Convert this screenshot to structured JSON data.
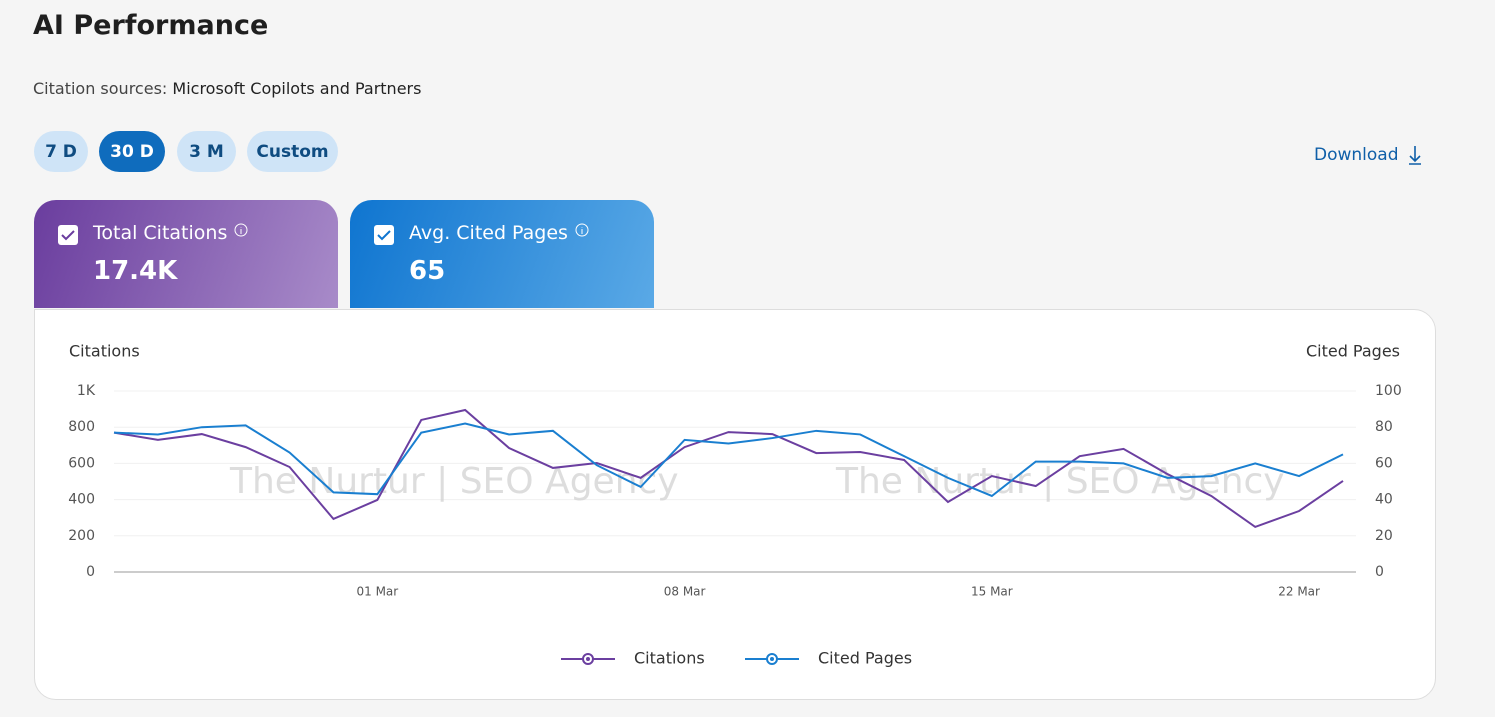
{
  "header": {
    "title": "AI Performance",
    "source_label": "Citation sources:",
    "source": "Microsoft Copilots and Partners"
  },
  "ranges": [
    "7 D",
    "30 D",
    "3 M",
    "Custom"
  ],
  "active_range": 1,
  "download": "Download",
  "cards": [
    {
      "label": "Total Citations",
      "value": "17.4K"
    },
    {
      "label": "Avg. Cited Pages",
      "value": "65"
    }
  ],
  "watermark": "The Nurtur | SEO Agency",
  "chart_data": {
    "type": "line",
    "y_label": "Citations",
    "y2_label": "Cited Pages",
    "categories": [
      null,
      null,
      null,
      null,
      null,
      null,
      "01 Mar",
      null,
      null,
      null,
      null,
      null,
      null,
      "08 Mar",
      null,
      null,
      null,
      null,
      null,
      null,
      "15 Mar",
      null,
      null,
      null,
      null,
      null,
      null,
      "22 Mar",
      null
    ],
    "series": [
      {
        "name": "Citations",
        "color": "#6b3fa0",
        "values": [
          770,
          730,
          762,
          690,
          580,
          293,
          398,
          840,
          895,
          685,
          575,
          602,
          520,
          690,
          773,
          762,
          657,
          663,
          619,
          387,
          530,
          475,
          640,
          680,
          541,
          420,
          249,
          337,
          503
        ]
      },
      {
        "name": "Cited Pages",
        "color": "#1a7fd0",
        "axis": "y2",
        "values": [
          77,
          76,
          80,
          81,
          66,
          44,
          43,
          77,
          82,
          76,
          78,
          59,
          47,
          73,
          71,
          74,
          78,
          76,
          64,
          52,
          42,
          61,
          61,
          60,
          52,
          53,
          60,
          53,
          65
        ]
      }
    ],
    "ylim": [
      0,
      1000
    ],
    "yticks": [
      0,
      200,
      400,
      600,
      800,
      {
        "value": 1000,
        "label": "1K"
      }
    ],
    "y2lim": [
      0,
      100
    ],
    "y2ticks": [
      0,
      20,
      40,
      60,
      80,
      100
    ],
    "grid": true,
    "legend": "bottom"
  }
}
